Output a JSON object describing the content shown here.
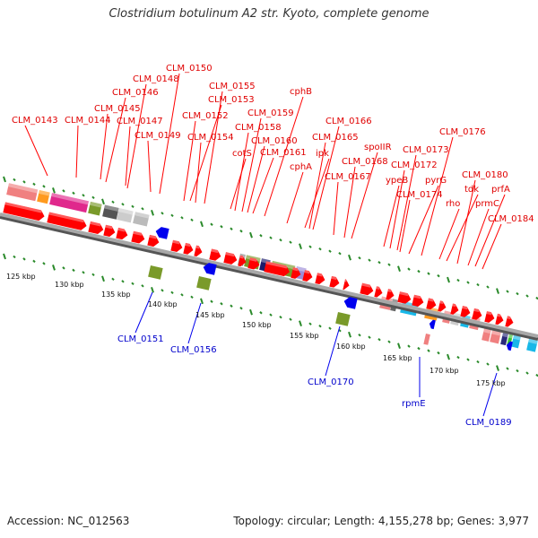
{
  "title": "Clostridium botulinum A2 str. Kyoto, complete genome",
  "accession": "Accession: NC_012563",
  "summary": "Topology: circular; Length: 4,155,278 bp; Genes: 3,977",
  "colors": {
    "forward_gene": "#ff0000",
    "reverse_gene": "#0000ee",
    "backbone": "#8c8c8c",
    "tick": "#2a8a2a",
    "red_label": "#e00000",
    "blue_label": "#0000cc"
  },
  "kbp_ticks": [
    "125 kbp",
    "130 kbp",
    "135 kbp",
    "140 kbp",
    "145 kbp",
    "150 kbp",
    "155 kbp",
    "160 kbp",
    "165 kbp",
    "170 kbp",
    "175 kbp"
  ],
  "forward_gene_labels": [
    "CLM_0143",
    "CLM_0144",
    "CLM_0145",
    "CLM_0146",
    "CLM_0147",
    "CLM_0148",
    "CLM_0149",
    "CLM_0150",
    "CLM_0152",
    "CLM_0153",
    "CLM_0154",
    "CLM_0155",
    "cotS",
    "CLM_0158",
    "CLM_0159",
    "CLM_0160",
    "CLM_0161",
    "cphB",
    "cphA",
    "ipk",
    "CLM_0165",
    "CLM_0166",
    "CLM_0167",
    "CLM_0168",
    "spoIIR",
    "ypeB",
    "CLM_0172",
    "CLM_0173",
    "CLM_0174",
    "pyrG",
    "CLM_0176",
    "rho",
    "tdk",
    "CLM_0180",
    "prmC",
    "prfA",
    "CLM_0184"
  ],
  "reverse_gene_labels": [
    "CLM_0151",
    "CLM_0156",
    "CLM_0170",
    "rpmE",
    "CLM_0189"
  ]
}
